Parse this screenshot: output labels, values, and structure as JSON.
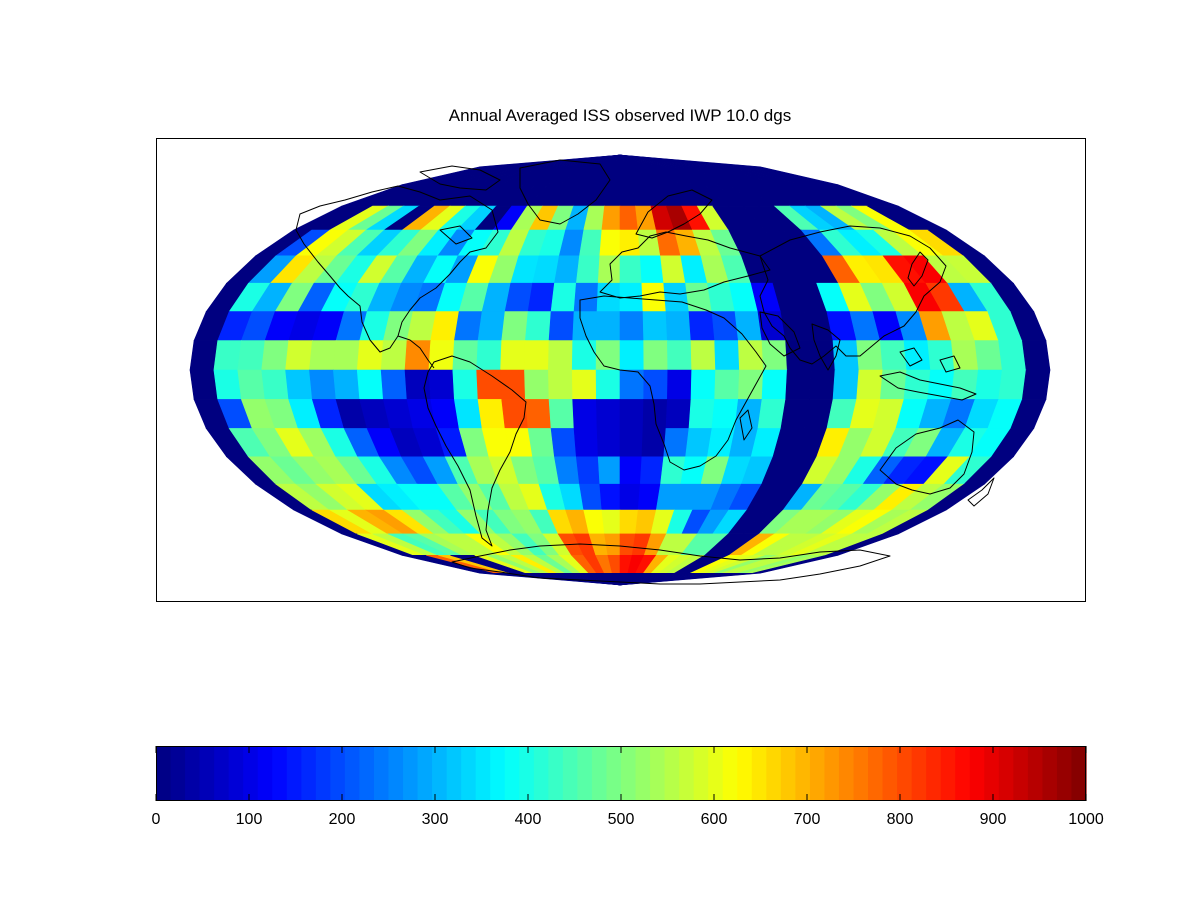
{
  "title": "Annual Averaged ISS observed IWP 10.0 dgs",
  "colormap": "jet",
  "colorbar": {
    "min": 0,
    "max": 1000,
    "ticks": [
      "0",
      "100",
      "200",
      "300",
      "400",
      "500",
      "600",
      "700",
      "800",
      "900",
      "1000"
    ],
    "levels": 64
  },
  "chart_data": {
    "type": "heatmap",
    "projection": "mollweide",
    "grid_resolution_deg": 10,
    "value_range": [
      0,
      1000
    ],
    "longitudes": [
      -175,
      -165,
      -155,
      -145,
      -135,
      -125,
      -115,
      -105,
      -95,
      -85,
      -75,
      -65,
      -55,
      -45,
      -35,
      -25,
      -15,
      -5,
      5,
      15,
      25,
      35,
      45,
      55,
      65,
      75,
      85,
      95,
      105,
      115,
      125,
      135,
      145,
      155,
      165,
      175
    ],
    "latitudes": [
      85,
      75,
      65,
      55,
      45,
      35,
      25,
      15,
      5,
      -5,
      -15,
      -25,
      -35,
      -45,
      -55,
      -65,
      -75,
      -85
    ],
    "values": [
      [
        0,
        0,
        0,
        0,
        0,
        0,
        0,
        0,
        0,
        0,
        0,
        0,
        0,
        0,
        0,
        0,
        0,
        0,
        0,
        0,
        0,
        0,
        0,
        0,
        0,
        0,
        0,
        0,
        0,
        0,
        0,
        0,
        0,
        0,
        0,
        0
      ],
      [
        0,
        0,
        0,
        0,
        0,
        0,
        0,
        0,
        0,
        0,
        0,
        0,
        0,
        0,
        0,
        0,
        0,
        0,
        0,
        0,
        0,
        0,
        0,
        0,
        0,
        0,
        0,
        0,
        0,
        0,
        0,
        0,
        0,
        0,
        0,
        0
      ],
      [
        0,
        0,
        0,
        0,
        0,
        0,
        0,
        0,
        0,
        0,
        0,
        0,
        0,
        0,
        0,
        0,
        0,
        0,
        0,
        0,
        0,
        0,
        0,
        0,
        0,
        0,
        0,
        0,
        0,
        0,
        0,
        0,
        0,
        0,
        0,
        0
      ],
      [
        0,
        0,
        600,
        480,
        340,
        0,
        700,
        600,
        400,
        330,
        0,
        120,
        540,
        680,
        500,
        300,
        540,
        720,
        780,
        720,
        920,
        960,
        860,
        580,
        0,
        0,
        0,
        0,
        450,
        330,
        300,
        560,
        500,
        620,
        0,
        0
      ],
      [
        0,
        200,
        620,
        580,
        450,
        330,
        420,
        500,
        360,
        260,
        380,
        420,
        560,
        420,
        400,
        260,
        440,
        620,
        640,
        560,
        770,
        700,
        560,
        480,
        0,
        0,
        0,
        0,
        240,
        420,
        360,
        400,
        560,
        620,
        660,
        0
      ],
      [
        0,
        280,
        650,
        560,
        480,
        400,
        580,
        460,
        300,
        380,
        280,
        620,
        520,
        350,
        340,
        300,
        430,
        540,
        430,
        380,
        580,
        360,
        540,
        450,
        0,
        0,
        0,
        0,
        780,
        640,
        650,
        860,
        880,
        560,
        570,
        0
      ],
      [
        0,
        400,
        300,
        500,
        220,
        380,
        420,
        300,
        260,
        240,
        380,
        460,
        300,
        200,
        160,
        400,
        240,
        340,
        360,
        620,
        330,
        480,
        420,
        380,
        120,
        0,
        0,
        380,
        600,
        500,
        580,
        880,
        820,
        300,
        420,
        0
      ],
      [
        0,
        160,
        200,
        120,
        100,
        120,
        240,
        400,
        500,
        560,
        640,
        240,
        300,
        500,
        420,
        200,
        300,
        300,
        250,
        320,
        300,
        160,
        200,
        300,
        80,
        0,
        0,
        140,
        240,
        120,
        260,
        720,
        560,
        600,
        420,
        0
      ],
      [
        0,
        430,
        440,
        500,
        580,
        540,
        540,
        600,
        560,
        740,
        610,
        470,
        420,
        600,
        600,
        560,
        400,
        500,
        360,
        500,
        440,
        560,
        340,
        560,
        500,
        0,
        0,
        320,
        500,
        440,
        360,
        420,
        540,
        480,
        420,
        0
      ],
      [
        0,
        400,
        460,
        430,
        320,
        260,
        300,
        380,
        220,
        60,
        80,
        400,
        800,
        800,
        520,
        560,
        600,
        400,
        240,
        200,
        100,
        380,
        460,
        500,
        380,
        0,
        0,
        320,
        580,
        480,
        420,
        380,
        440,
        400,
        420,
        0
      ],
      [
        0,
        200,
        520,
        500,
        360,
        160,
        40,
        60,
        80,
        100,
        120,
        350,
        640,
        800,
        780,
        460,
        100,
        80,
        60,
        40,
        60,
        400,
        380,
        300,
        420,
        0,
        0,
        440,
        600,
        580,
        380,
        300,
        240,
        340,
        380,
        0
      ],
      [
        0,
        450,
        500,
        600,
        530,
        400,
        220,
        120,
        60,
        80,
        150,
        500,
        620,
        620,
        480,
        200,
        100,
        80,
        60,
        40,
        240,
        320,
        360,
        300,
        360,
        0,
        0,
        640,
        520,
        580,
        440,
        500,
        300,
        400,
        380,
        0
      ],
      [
        0,
        520,
        480,
        520,
        540,
        480,
        400,
        260,
        200,
        280,
        450,
        540,
        580,
        500,
        460,
        250,
        180,
        280,
        120,
        160,
        420,
        380,
        500,
        340,
        320,
        0,
        0,
        580,
        520,
        400,
        220,
        160,
        140,
        600,
        420,
        0
      ],
      [
        0,
        560,
        520,
        580,
        600,
        340,
        360,
        380,
        380,
        460,
        520,
        460,
        560,
        600,
        400,
        340,
        200,
        140,
        100,
        120,
        280,
        280,
        280,
        240,
        200,
        0,
        0,
        300,
        480,
        460,
        420,
        520,
        640,
        560,
        520,
        0
      ],
      [
        0,
        660,
        600,
        700,
        720,
        650,
        520,
        440,
        400,
        520,
        440,
        500,
        520,
        440,
        660,
        700,
        620,
        600,
        660,
        680,
        600,
        400,
        200,
        280,
        340,
        0,
        0,
        500,
        540,
        540,
        520,
        600,
        620,
        540,
        560,
        0
      ],
      [
        0,
        600,
        560,
        440,
        460,
        540,
        560,
        560,
        620,
        560,
        520,
        440,
        500,
        580,
        800,
        820,
        700,
        720,
        800,
        820,
        720,
        560,
        560,
        460,
        460,
        0,
        0,
        700,
        620,
        560,
        560,
        580,
        600,
        560,
        560,
        0
      ],
      [
        0,
        0,
        780,
        680,
        0,
        0,
        600,
        520,
        560,
        640,
        560,
        480,
        540,
        600,
        780,
        820,
        760,
        800,
        860,
        880,
        860,
        700,
        600,
        580,
        560,
        0,
        0,
        620,
        600,
        580,
        520,
        560,
        560,
        520,
        540,
        0
      ],
      [
        0,
        0,
        0,
        0,
        0,
        0,
        0,
        0,
        0,
        0,
        0,
        0,
        0,
        0,
        0,
        0,
        0,
        0,
        0,
        0,
        0,
        0,
        0,
        0,
        0,
        0,
        0,
        0,
        0,
        0,
        0,
        0,
        0,
        0,
        0,
        0
      ]
    ]
  }
}
